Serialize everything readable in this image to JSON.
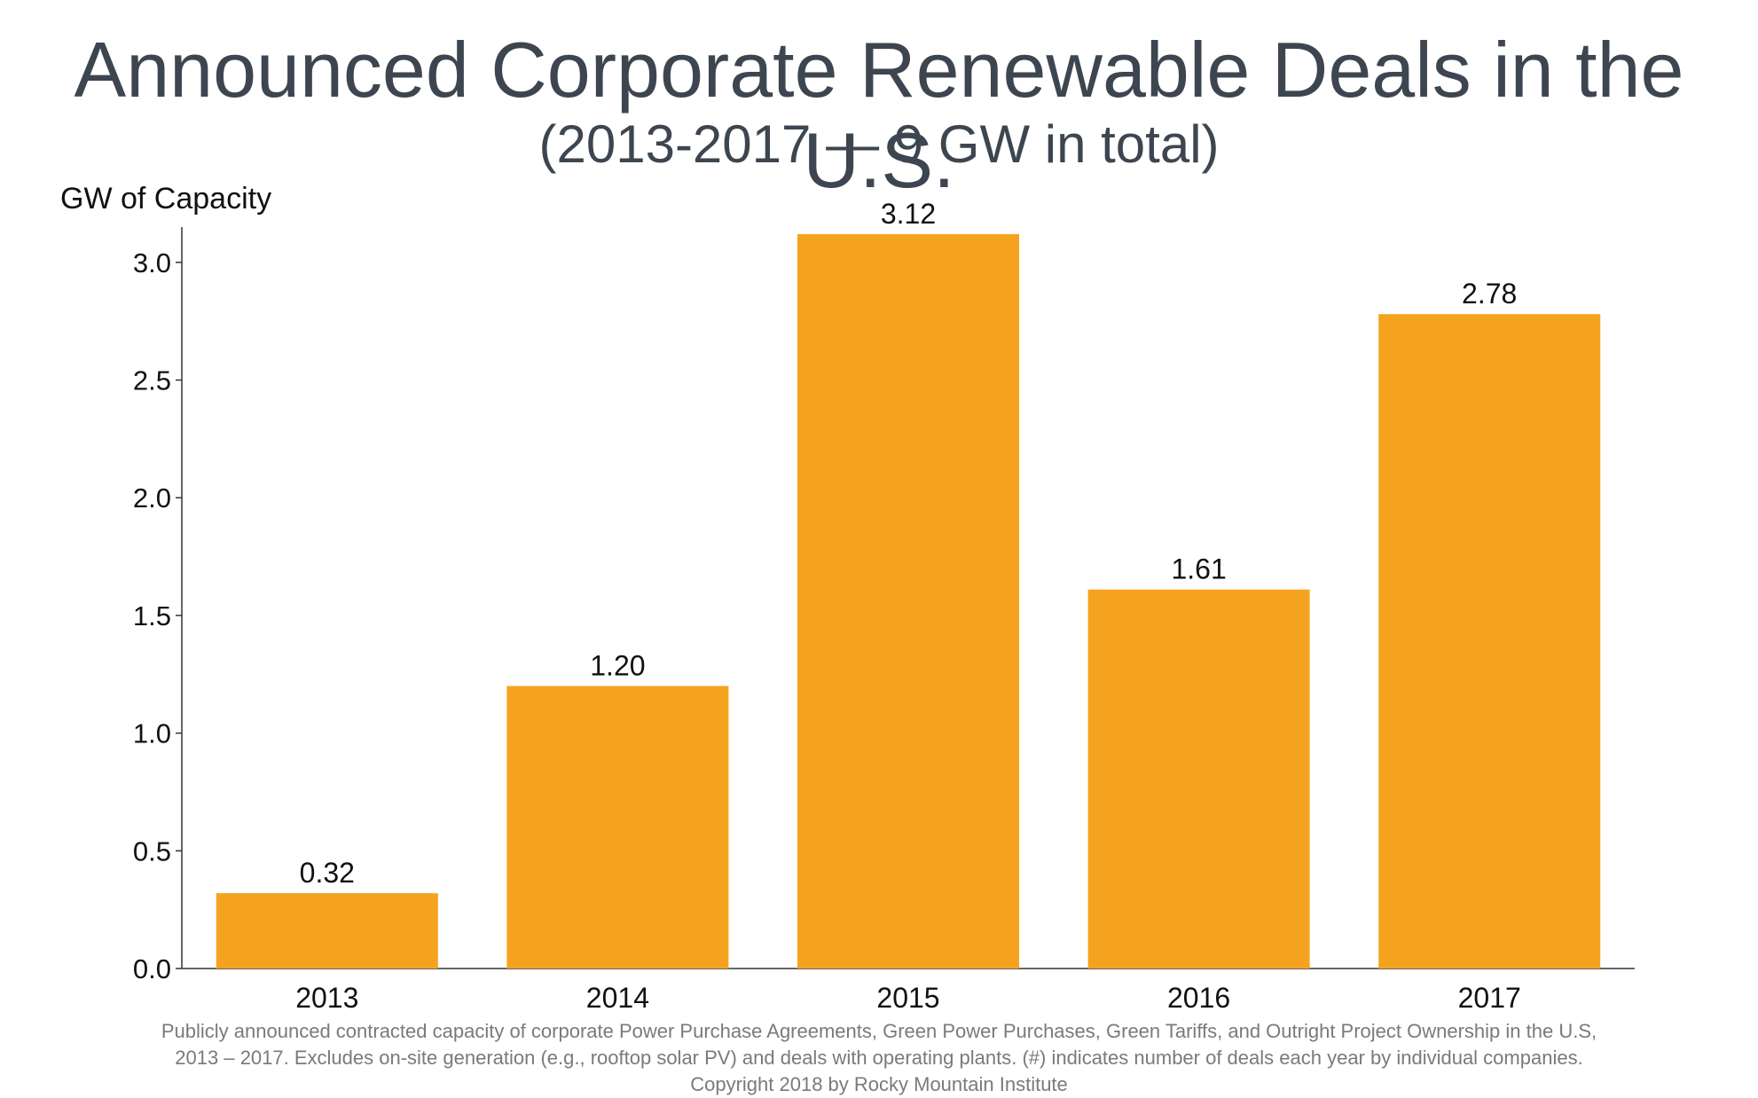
{
  "header": {
    "title": "Announced Corporate Renewable Deals in the U.S.",
    "subtitle": "(2013-2017 — 9 GW in total)"
  },
  "footnote": {
    "line1": "Publicly announced contracted capacity of corporate Power Purchase Agreements, Green Power Purchases, Green Tariffs, and Outright Project Ownership in the U.S,",
    "line2": "2013 – 2017. Excludes on-site generation (e.g., rooftop solar PV) and deals with operating plants. (#) indicates number of deals each year by individual companies.",
    "copyright": "Copyright 2018 by Rocky Mountain Institute"
  },
  "chart_data": {
    "type": "bar",
    "categories": [
      "2013",
      "2014",
      "2015",
      "2016",
      "2017"
    ],
    "values": [
      0.32,
      1.2,
      3.12,
      1.61,
      2.78
    ],
    "value_labels": [
      "0.32",
      "1.20",
      "3.12",
      "1.61",
      "2.78"
    ],
    "title": "Announced Corporate Renewable Deals in the U.S.",
    "subtitle": "(2013-2017 — 9 GW in total)",
    "xlabel": "",
    "ylabel": "GW of Capacity",
    "ylim": [
      0,
      3.15
    ],
    "yticks": [
      "0.0",
      "0.5",
      "1.0",
      "1.5",
      "2.0",
      "2.5",
      "3.0"
    ],
    "grid": false,
    "bar_color": "#f5a31e"
  }
}
